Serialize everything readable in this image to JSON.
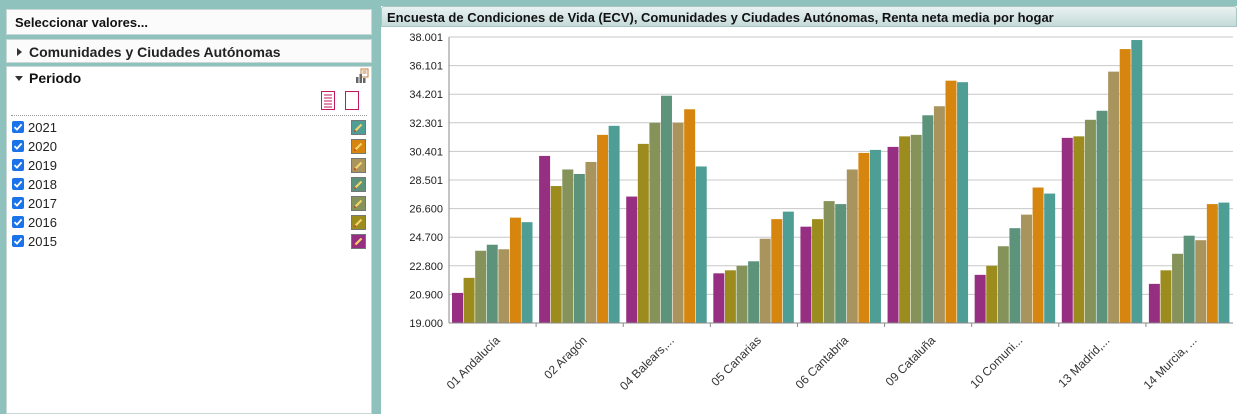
{
  "left_panel": {
    "select_header": "Seleccionar valores...",
    "comunidades_label": "Comunidades y Ciudades Autónomas",
    "periodo_label": "Periodo",
    "periods": [
      {
        "label": "2021",
        "color": "#4f9e96"
      },
      {
        "label": "2020",
        "color": "#d6860f"
      },
      {
        "label": "2019",
        "color": "#a9945e"
      },
      {
        "label": "2018",
        "color": "#5d937b"
      },
      {
        "label": "2017",
        "color": "#85935a"
      },
      {
        "label": "2016",
        "color": "#9c8c1e"
      },
      {
        "label": "2015",
        "color": "#962f81"
      }
    ]
  },
  "icons": {
    "chart_settings": "chart-settings-icon",
    "select_all": "select-all-icon",
    "select_none": "select-none-icon",
    "color_edit": "pencil-icon"
  },
  "chart_data": {
    "type": "bar",
    "title": "Encuesta de Condiciones de Vida (ECV), Comunidades y Ciudades Autónomas, Renta neta media por hogar",
    "categories": [
      "01 Andalucía",
      "02 Aragón",
      "04 Balears,...",
      "05 Canarias",
      "06 Cantabria",
      "09 Cataluña",
      "10 Comuni...",
      "13 Madrid,...",
      "14 Murcia, ..."
    ],
    "ylim": [
      19000,
      38001
    ],
    "yticks": [
      "19.000",
      "20.900",
      "22.800",
      "24.700",
      "26.600",
      "28.501",
      "30.401",
      "32.301",
      "34.201",
      "36.101",
      "38.001"
    ],
    "grid": true,
    "series": [
      {
        "name": "2015",
        "color": "#962f81",
        "values": [
          21000,
          30100,
          27400,
          22300,
          25400,
          30700,
          22200,
          31300,
          21600
        ]
      },
      {
        "name": "2016",
        "color": "#9c8c1e",
        "values": [
          22000,
          28100,
          30900,
          22500,
          25900,
          31400,
          22800,
          31400,
          22500
        ]
      },
      {
        "name": "2017",
        "color": "#85935a",
        "values": [
          23800,
          29200,
          32300,
          22800,
          27100,
          31500,
          24100,
          32500,
          23600
        ]
      },
      {
        "name": "2018",
        "color": "#5d937b",
        "values": [
          24200,
          28900,
          34100,
          23100,
          26900,
          32800,
          25300,
          33100,
          24800
        ]
      },
      {
        "name": "2019",
        "color": "#a9945e",
        "values": [
          23900,
          29700,
          32300,
          24600,
          29200,
          33400,
          26200,
          35700,
          24500
        ]
      },
      {
        "name": "2020",
        "color": "#d6860f",
        "values": [
          26000,
          31500,
          33200,
          25900,
          30300,
          35100,
          28000,
          37200,
          26900
        ]
      },
      {
        "name": "2021",
        "color": "#4f9e96",
        "values": [
          25700,
          32100,
          29400,
          26400,
          30500,
          35000,
          27600,
          37800,
          27000
        ]
      }
    ]
  }
}
